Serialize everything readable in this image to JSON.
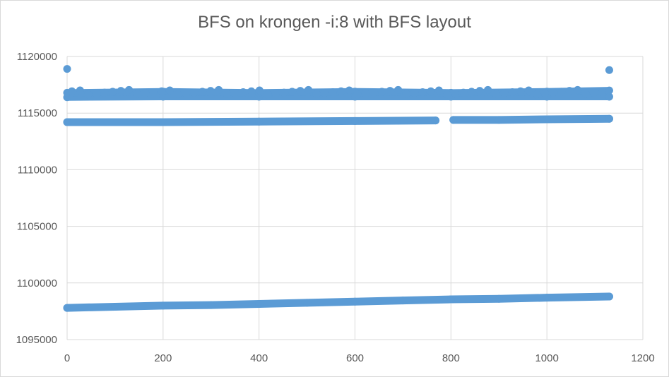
{
  "chart_data": {
    "type": "scatter",
    "title": "BFS on krongen -i:8 with BFS layout",
    "xlim": [
      0,
      1200
    ],
    "ylim": [
      1095000,
      1120000
    ],
    "x_ticks": [
      0,
      200,
      400,
      600,
      800,
      1000,
      1200
    ],
    "y_ticks": [
      1095000,
      1100000,
      1105000,
      1110000,
      1115000,
      1120000
    ],
    "grid": true,
    "legend": "none",
    "marker_color": "#5b9bd5",
    "series": [
      {
        "description": "lower band",
        "points": [
          [
            0,
            1097800
          ],
          [
            100,
            1097900
          ],
          [
            200,
            1098000
          ],
          [
            300,
            1098050
          ],
          [
            400,
            1098150
          ],
          [
            500,
            1098250
          ],
          [
            600,
            1098350
          ],
          [
            700,
            1098450
          ],
          [
            800,
            1098550
          ],
          [
            900,
            1098600
          ],
          [
            1000,
            1098700
          ],
          [
            1130,
            1098800
          ]
        ]
      },
      {
        "description": "middle band",
        "points": [
          [
            0,
            1114200
          ],
          [
            200,
            1114200
          ],
          [
            400,
            1114250
          ],
          [
            600,
            1114300
          ],
          [
            768,
            1114350
          ],
          [
            805,
            1114400
          ],
          [
            900,
            1114400
          ],
          [
            1000,
            1114450
          ],
          [
            1130,
            1114500
          ]
        ]
      },
      {
        "description": "upper band",
        "points": [
          [
            0,
            1116400
          ],
          [
            200,
            1116450
          ],
          [
            400,
            1116450
          ],
          [
            600,
            1116450
          ],
          [
            800,
            1116450
          ],
          [
            1000,
            1116450
          ],
          [
            1130,
            1116450
          ],
          [
            0,
            1116800
          ],
          [
            200,
            1116900
          ],
          [
            400,
            1116800
          ],
          [
            600,
            1116900
          ],
          [
            800,
            1116800
          ],
          [
            1000,
            1116900
          ],
          [
            1130,
            1117000
          ]
        ]
      },
      {
        "description": "outliers",
        "points": [
          [
            0,
            1118900
          ],
          [
            1130,
            1118800
          ]
        ]
      }
    ]
  }
}
